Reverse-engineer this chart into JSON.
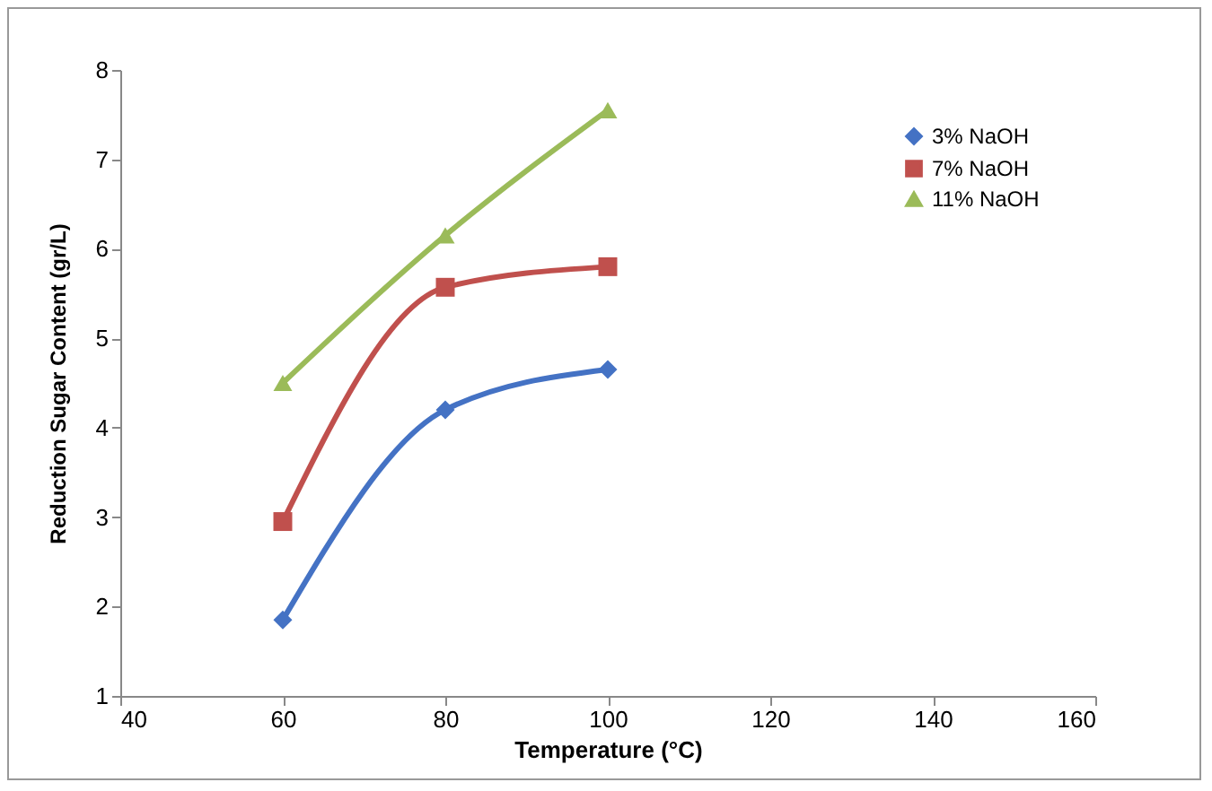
{
  "chart_data": {
    "type": "line",
    "xlabel": "Temperature (°C)",
    "ylabel": "Reduction Sugar Content (gr/L)",
    "x": [
      60,
      80,
      100
    ],
    "series": [
      {
        "name": "3% NaOH",
        "color": "#4472c4",
        "marker": "diamond",
        "values": [
          1.85,
          4.2,
          4.65
        ]
      },
      {
        "name": "7% NaOH",
        "color": "#c0504d",
        "marker": "square",
        "values": [
          2.95,
          5.57,
          5.8
        ]
      },
      {
        "name": "11% NaOH",
        "color": "#9bbb59",
        "marker": "triangle",
        "values": [
          4.5,
          6.15,
          7.55
        ]
      }
    ],
    "xlim": [
      40,
      160
    ],
    "xticks": [
      40,
      60,
      80,
      100,
      120,
      140,
      160
    ],
    "ylim": [
      1,
      8
    ],
    "yticks": [
      1,
      2,
      3,
      4,
      5,
      6,
      7,
      8
    ],
    "grid": false,
    "legend": "top right"
  }
}
